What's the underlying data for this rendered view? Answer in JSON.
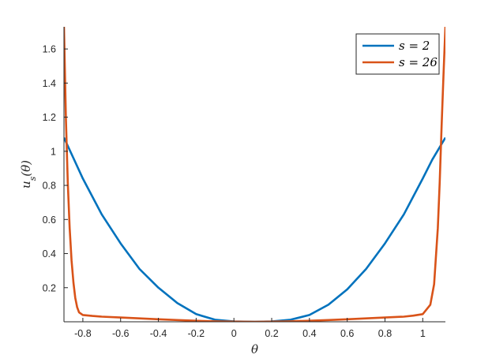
{
  "chart_data": {
    "type": "line",
    "xlabel": "θ",
    "ylabel": "u_s(θ)",
    "xlim": [
      -0.9,
      1.12
    ],
    "ylim": [
      0,
      1.73
    ],
    "xticks": [
      -0.8,
      -0.6,
      -0.4,
      -0.2,
      0,
      0.2,
      0.4,
      0.6,
      0.8,
      1
    ],
    "xtick_labels": [
      "-0.8",
      "-0.6",
      "-0.4",
      "-0.2",
      "0",
      "0.2",
      "0.4",
      "0.6",
      "0.8",
      "1"
    ],
    "yticks": [
      0.2,
      0.4,
      0.6,
      0.8,
      1,
      1.2,
      1.4,
      1.6
    ],
    "ytick_labels": [
      "0.2",
      "0.4",
      "0.6",
      "0.8",
      "1",
      "1.2",
      "1.4",
      "1.6"
    ],
    "grid": false,
    "legend_position": "top-right",
    "series": [
      {
        "name": "s = 2",
        "color": "#0072BD",
        "x": [
          -0.9,
          -0.85,
          -0.8,
          -0.7,
          -0.6,
          -0.5,
          -0.4,
          -0.3,
          -0.2,
          -0.1,
          0,
          0.11,
          0.2,
          0.3,
          0.4,
          0.5,
          0.6,
          0.7,
          0.8,
          0.9,
          1.0,
          1.05,
          1.12
        ],
        "y": [
          1.08,
          0.96,
          0.84,
          0.63,
          0.46,
          0.31,
          0.2,
          0.11,
          0.045,
          0.012,
          0.002,
          0.0,
          0.002,
          0.012,
          0.04,
          0.1,
          0.19,
          0.31,
          0.46,
          0.63,
          0.84,
          0.95,
          1.08
        ]
      },
      {
        "name": "s = 26",
        "color": "#D95319",
        "x": [
          -0.9,
          -0.89,
          -0.88,
          -0.87,
          -0.86,
          -0.85,
          -0.84,
          -0.83,
          -0.82,
          -0.8,
          -0.75,
          -0.7,
          -0.6,
          -0.5,
          -0.4,
          -0.3,
          -0.2,
          -0.1,
          0,
          0.11,
          0.2,
          0.3,
          0.4,
          0.5,
          0.6,
          0.7,
          0.8,
          0.9,
          0.95,
          1.0,
          1.04,
          1.06,
          1.08,
          1.09,
          1.1,
          1.11,
          1.12
        ],
        "y": [
          1.73,
          1.2,
          0.82,
          0.55,
          0.36,
          0.23,
          0.14,
          0.085,
          0.055,
          0.04,
          0.034,
          0.03,
          0.025,
          0.02,
          0.015,
          0.01,
          0.006,
          0.003,
          0.001,
          0.0,
          0.001,
          0.003,
          0.006,
          0.01,
          0.015,
          0.02,
          0.025,
          0.03,
          0.036,
          0.045,
          0.1,
          0.22,
          0.55,
          0.82,
          1.15,
          1.45,
          1.73
        ]
      }
    ]
  }
}
